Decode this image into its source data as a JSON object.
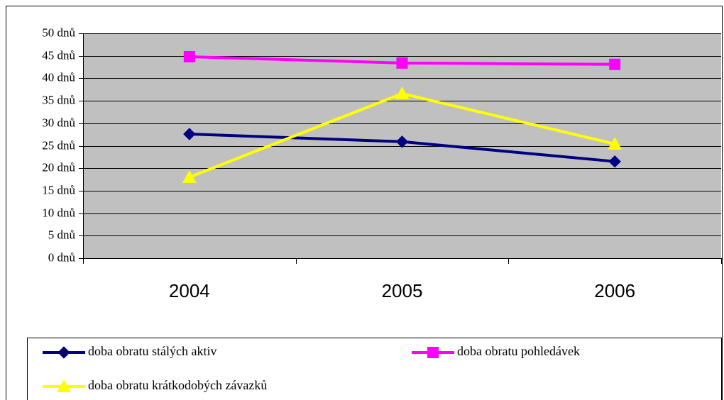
{
  "chart_data": {
    "type": "line",
    "categories": [
      "2004",
      "2005",
      "2006"
    ],
    "series": [
      {
        "name": "doba obratu stálých aktiv",
        "color": "#000080",
        "marker": "diamond",
        "values": [
          27.6,
          25.9,
          21.5
        ]
      },
      {
        "name": "doba obratu pohledávek",
        "color": "#ff00ff",
        "marker": "square",
        "values": [
          44.8,
          43.4,
          43.1
        ]
      },
      {
        "name": "doba obratu krátkodobých závazků",
        "color": "#ffff00",
        "marker": "triangle",
        "values": [
          18.0,
          36.6,
          25.4
        ]
      }
    ],
    "ylim": [
      0,
      50
    ],
    "yticks": [
      {
        "value": 0,
        "label": "0 dnů"
      },
      {
        "value": 5,
        "label": "5 dnů"
      },
      {
        "value": 10,
        "label": "10 dnů"
      },
      {
        "value": 15,
        "label": "15 dnů"
      },
      {
        "value": 20,
        "label": "20 dnů"
      },
      {
        "value": 25,
        "label": "25 dnů"
      },
      {
        "value": 30,
        "label": "30 dnů"
      },
      {
        "value": 35,
        "label": "35 dnů"
      },
      {
        "value": 40,
        "label": "40 dnů"
      },
      {
        "value": 45,
        "label": "45 dnů"
      },
      {
        "value": 50,
        "label": "50 dnů"
      }
    ],
    "grid": true,
    "plot_background": "#c0c0c0",
    "legend": "bottom"
  }
}
